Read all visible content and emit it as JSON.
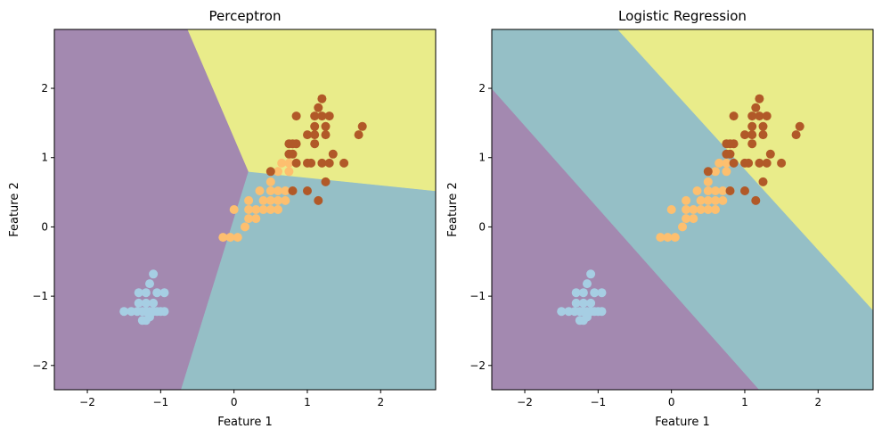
{
  "chart_data": [
    {
      "type": "scatter",
      "title": "Perceptron",
      "xlabel": "Feature 1",
      "ylabel": "Feature 2",
      "xlim": [
        -2.45,
        2.75
      ],
      "ylim": [
        -2.35,
        2.85
      ],
      "xticks": [
        -2,
        -1,
        0,
        1,
        2
      ],
      "yticks": [
        -2,
        -1,
        0,
        1,
        2
      ],
      "grid": false,
      "region_colors": {
        "class_0": "#a389b0",
        "class_1": "#95bfc6",
        "class_2": "#e9ec8a"
      },
      "decision_regions": [
        {
          "class": "class_0",
          "polygon": [
            [
              -2.45,
              2.85
            ],
            [
              -0.63,
              2.85
            ],
            [
              0.2,
              0.8
            ],
            [
              -0.72,
              -2.35
            ],
            [
              -2.45,
              -2.35
            ]
          ]
        },
        {
          "class": "class_1",
          "polygon": [
            [
              -0.72,
              -2.35
            ],
            [
              2.75,
              -2.35
            ],
            [
              2.75,
              0.52
            ],
            [
              0.2,
              0.8
            ]
          ]
        },
        {
          "class": "class_2",
          "polygon": [
            [
              -0.63,
              2.85
            ],
            [
              2.75,
              2.85
            ],
            [
              2.75,
              0.52
            ],
            [
              0.2,
              0.8
            ]
          ]
        }
      ]
    },
    {
      "type": "scatter",
      "title": "Logistic Regression",
      "xlabel": "Feature 1",
      "ylabel": "Feature 2",
      "xlim": [
        -2.45,
        2.75
      ],
      "ylim": [
        -2.35,
        2.85
      ],
      "xticks": [
        -2,
        -1,
        0,
        1,
        2
      ],
      "yticks": [
        -2,
        -1,
        0,
        1,
        2
      ],
      "grid": false,
      "region_colors": {
        "class_0": "#a389b0",
        "class_1": "#95bfc6",
        "class_2": "#e9ec8a"
      },
      "decision_regions": [
        {
          "class": "class_0",
          "polygon": [
            [
              -2.45,
              2.0
            ],
            [
              1.2,
              -2.35
            ],
            [
              -2.45,
              -2.35
            ]
          ]
        },
        {
          "class": "class_1",
          "polygon": [
            [
              -2.45,
              2.85
            ],
            [
              -0.73,
              2.85
            ],
            [
              2.75,
              -1.2
            ],
            [
              2.75,
              -2.35
            ],
            [
              1.2,
              -2.35
            ],
            [
              -2.45,
              2.0
            ]
          ]
        },
        {
          "class": "class_2",
          "polygon": [
            [
              -0.73,
              2.85
            ],
            [
              2.75,
              2.85
            ],
            [
              2.75,
              -1.2
            ]
          ]
        }
      ]
    }
  ],
  "points": {
    "colors": {
      "class_0": "#a6cee3",
      "class_1": "#fdbf6f",
      "class_2": "#b15928"
    },
    "class_0": [
      [
        -1.5,
        -1.22
      ],
      [
        -1.4,
        -1.22
      ],
      [
        -1.32,
        -1.22
      ],
      [
        -1.25,
        -1.22
      ],
      [
        -1.2,
        -1.22
      ],
      [
        -1.15,
        -1.22
      ],
      [
        -1.1,
        -1.22
      ],
      [
        -1.05,
        -1.22
      ],
      [
        -1.0,
        -1.22
      ],
      [
        -0.95,
        -1.22
      ],
      [
        -1.3,
        -1.1
      ],
      [
        -1.2,
        -1.1
      ],
      [
        -1.1,
        -1.1
      ],
      [
        -1.3,
        -0.95
      ],
      [
        -1.2,
        -0.95
      ],
      [
        -1.05,
        -0.95
      ],
      [
        -0.95,
        -0.95
      ],
      [
        -1.15,
        -0.82
      ],
      [
        -1.1,
        -0.68
      ],
      [
        -1.25,
        -1.35
      ],
      [
        -1.2,
        -1.35
      ],
      [
        -1.15,
        -1.3
      ]
    ],
    "class_1": [
      [
        -0.15,
        -0.15
      ],
      [
        -0.05,
        -0.15
      ],
      [
        0.05,
        -0.15
      ],
      [
        0.15,
        0.0
      ],
      [
        0.0,
        0.25
      ],
      [
        0.2,
        0.12
      ],
      [
        0.3,
        0.12
      ],
      [
        0.2,
        0.25
      ],
      [
        0.3,
        0.25
      ],
      [
        0.4,
        0.25
      ],
      [
        0.5,
        0.25
      ],
      [
        0.6,
        0.25
      ],
      [
        0.2,
        0.38
      ],
      [
        0.4,
        0.38
      ],
      [
        0.5,
        0.38
      ],
      [
        0.6,
        0.38
      ],
      [
        0.7,
        0.38
      ],
      [
        0.35,
        0.52
      ],
      [
        0.5,
        0.52
      ],
      [
        0.6,
        0.52
      ],
      [
        0.7,
        0.52
      ],
      [
        0.8,
        0.52
      ],
      [
        0.5,
        0.65
      ],
      [
        0.6,
        0.8
      ],
      [
        0.75,
        0.8
      ],
      [
        0.65,
        0.92
      ],
      [
        0.75,
        0.92
      ]
    ],
    "class_2": [
      [
        0.5,
        0.8
      ],
      [
        0.8,
        0.52
      ],
      [
        1.0,
        0.52
      ],
      [
        0.75,
        1.05
      ],
      [
        0.8,
        1.05
      ],
      [
        0.85,
        0.92
      ],
      [
        1.0,
        0.92
      ],
      [
        1.05,
        0.92
      ],
      [
        1.2,
        0.92
      ],
      [
        1.3,
        0.92
      ],
      [
        1.1,
        1.2
      ],
      [
        0.75,
        1.2
      ],
      [
        0.85,
        1.2
      ],
      [
        1.0,
        1.33
      ],
      [
        1.1,
        1.33
      ],
      [
        1.25,
        1.33
      ],
      [
        1.1,
        1.45
      ],
      [
        1.25,
        1.45
      ],
      [
        1.1,
        1.6
      ],
      [
        1.2,
        1.6
      ],
      [
        1.3,
        1.6
      ],
      [
        1.15,
        1.72
      ],
      [
        1.2,
        1.85
      ],
      [
        0.85,
        1.6
      ],
      [
        1.7,
        1.33
      ],
      [
        1.75,
        1.45
      ],
      [
        1.35,
        1.05
      ],
      [
        1.5,
        0.92
      ],
      [
        1.25,
        0.65
      ],
      [
        1.15,
        0.38
      ],
      [
        0.8,
        1.2
      ]
    ]
  }
}
